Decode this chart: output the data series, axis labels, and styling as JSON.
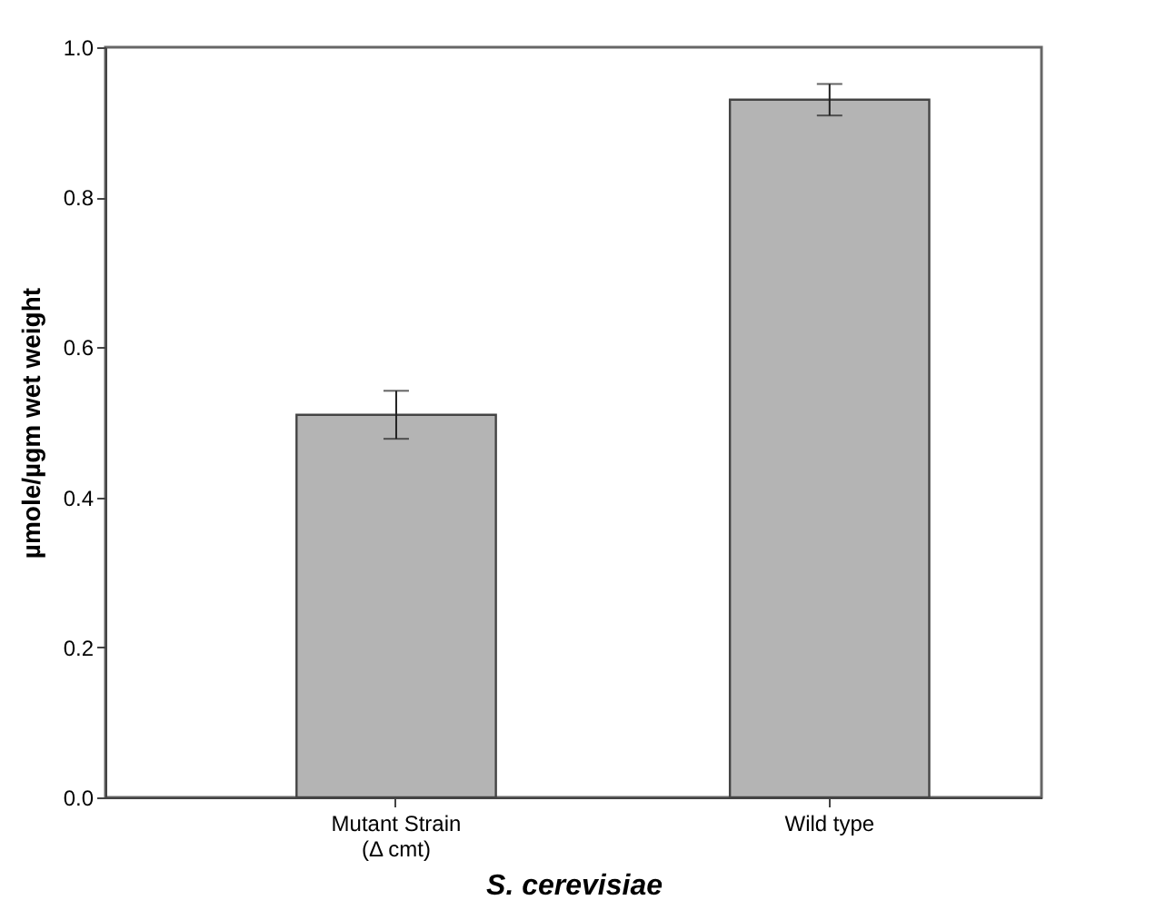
{
  "chart_data": {
    "type": "bar",
    "xlabel": "S. cerevisiae",
    "ylabel": "µmole/µgm wet weight",
    "categories": [
      "Mutant Strain\n(Δ cmt)",
      "Wild type"
    ],
    "values": [
      0.51,
      0.93
    ],
    "errors": [
      0.032,
      0.021
    ],
    "color": "#b4b4b4",
    "ylim": [
      0,
      1.0
    ],
    "yticks": [
      {
        "value": 0,
        "label": "0.0"
      },
      {
        "value": 0.2,
        "label": "0.2"
      },
      {
        "value": 0.4,
        "label": "0.4"
      },
      {
        "value": 0.6,
        "label": "0.6"
      },
      {
        "value": 0.8,
        "label": "0.8"
      },
      {
        "value": 1.0,
        "label": "1.0"
      }
    ],
    "grid": false
  }
}
